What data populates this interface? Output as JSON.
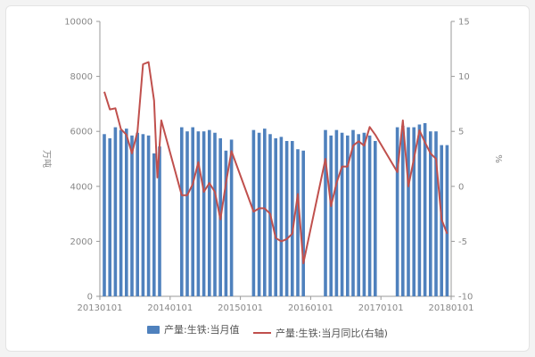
{
  "chart_data": {
    "type": "bar+line",
    "x_ticks": [
      "20130101",
      "20140101",
      "20150101",
      "20160101",
      "20170101",
      "20180101"
    ],
    "left_axis": {
      "label": "万吨",
      "min": 0,
      "max": 10000,
      "ticks": [
        "0",
        "2000",
        "4000",
        "6000",
        "8000",
        "10000"
      ]
    },
    "right_axis": {
      "label": "%",
      "min": -10,
      "max": 15,
      "ticks": [
        "-10",
        "-5",
        "0",
        "5",
        "10",
        "15"
      ]
    },
    "series": [
      {
        "name": "产量:生铁:当月值",
        "type": "bar",
        "color": "#4f81bd",
        "points": [
          [
            0,
            5900
          ],
          [
            1,
            5750
          ],
          [
            2,
            6150
          ],
          [
            3,
            6050
          ],
          [
            4,
            6100
          ],
          [
            5,
            5850
          ],
          [
            6,
            5950
          ],
          [
            7,
            5900
          ],
          [
            8,
            5850
          ],
          [
            9,
            5200
          ],
          [
            10,
            5450
          ],
          [
            14,
            6150
          ],
          [
            15,
            6000
          ],
          [
            16,
            6150
          ],
          [
            17,
            6000
          ],
          [
            18,
            6000
          ],
          [
            19,
            6050
          ],
          [
            20,
            5950
          ],
          [
            21,
            5750
          ],
          [
            22,
            5300
          ],
          [
            23,
            5700
          ],
          [
            27,
            6050
          ],
          [
            28,
            5950
          ],
          [
            29,
            6100
          ],
          [
            30,
            5900
          ],
          [
            31,
            5750
          ],
          [
            32,
            5800
          ],
          [
            33,
            5650
          ],
          [
            34,
            5650
          ],
          [
            35,
            5350
          ],
          [
            36,
            5300
          ],
          [
            40,
            6050
          ],
          [
            41,
            5850
          ],
          [
            42,
            6050
          ],
          [
            43,
            5950
          ],
          [
            44,
            5850
          ],
          [
            45,
            6050
          ],
          [
            46,
            5900
          ],
          [
            47,
            5950
          ],
          [
            48,
            5850
          ],
          [
            49,
            5650
          ],
          [
            53,
            6150
          ],
          [
            54,
            6200
          ],
          [
            55,
            6150
          ],
          [
            56,
            6150
          ],
          [
            57,
            6250
          ],
          [
            58,
            6300
          ],
          [
            59,
            6000
          ],
          [
            60,
            6000
          ],
          [
            61,
            5500
          ],
          [
            62,
            5500
          ]
        ]
      },
      {
        "name": "产量:生铁:当月同比(右轴)",
        "type": "line",
        "color": "#c0504d",
        "points": [
          [
            0,
            8.6
          ],
          [
            1,
            7.0
          ],
          [
            2,
            7.1
          ],
          [
            3,
            5.2
          ],
          [
            4,
            4.7
          ],
          [
            5,
            3.0
          ],
          [
            6,
            5.0
          ],
          [
            7,
            11.1
          ],
          [
            8,
            11.3
          ],
          [
            9,
            7.8
          ],
          [
            9.6,
            0.8
          ],
          [
            10.3,
            6.0
          ],
          [
            14,
            -0.8
          ],
          [
            15,
            -0.8
          ],
          [
            16,
            0.2
          ],
          [
            17,
            2.2
          ],
          [
            18,
            -0.5
          ],
          [
            19,
            0.3
          ],
          [
            20,
            -0.5
          ],
          [
            21,
            -3.0
          ],
          [
            22,
            0.3
          ],
          [
            23,
            3.2
          ],
          [
            27,
            -2.3
          ],
          [
            28,
            -2.0
          ],
          [
            29,
            -2.0
          ],
          [
            30,
            -2.5
          ],
          [
            31,
            -4.7
          ],
          [
            32,
            -5.0
          ],
          [
            33,
            -4.8
          ],
          [
            34,
            -4.3
          ],
          [
            35,
            -0.7
          ],
          [
            36,
            -7.0
          ],
          [
            40,
            2.5
          ],
          [
            41,
            -1.8
          ],
          [
            42,
            0.3
          ],
          [
            43,
            1.8
          ],
          [
            44,
            1.8
          ],
          [
            45,
            3.7
          ],
          [
            46,
            4.1
          ],
          [
            47,
            3.7
          ],
          [
            48,
            5.4
          ],
          [
            49,
            4.7
          ],
          [
            53,
            1.3
          ],
          [
            54,
            6.0
          ],
          [
            55,
            0.0
          ],
          [
            56,
            2.5
          ],
          [
            57,
            5.1
          ],
          [
            58,
            4.0
          ],
          [
            59,
            3.0
          ],
          [
            60,
            2.5
          ],
          [
            61,
            -3.0
          ],
          [
            62,
            -4.3
          ]
        ]
      }
    ],
    "legend_position": "bottom",
    "grid": false
  }
}
